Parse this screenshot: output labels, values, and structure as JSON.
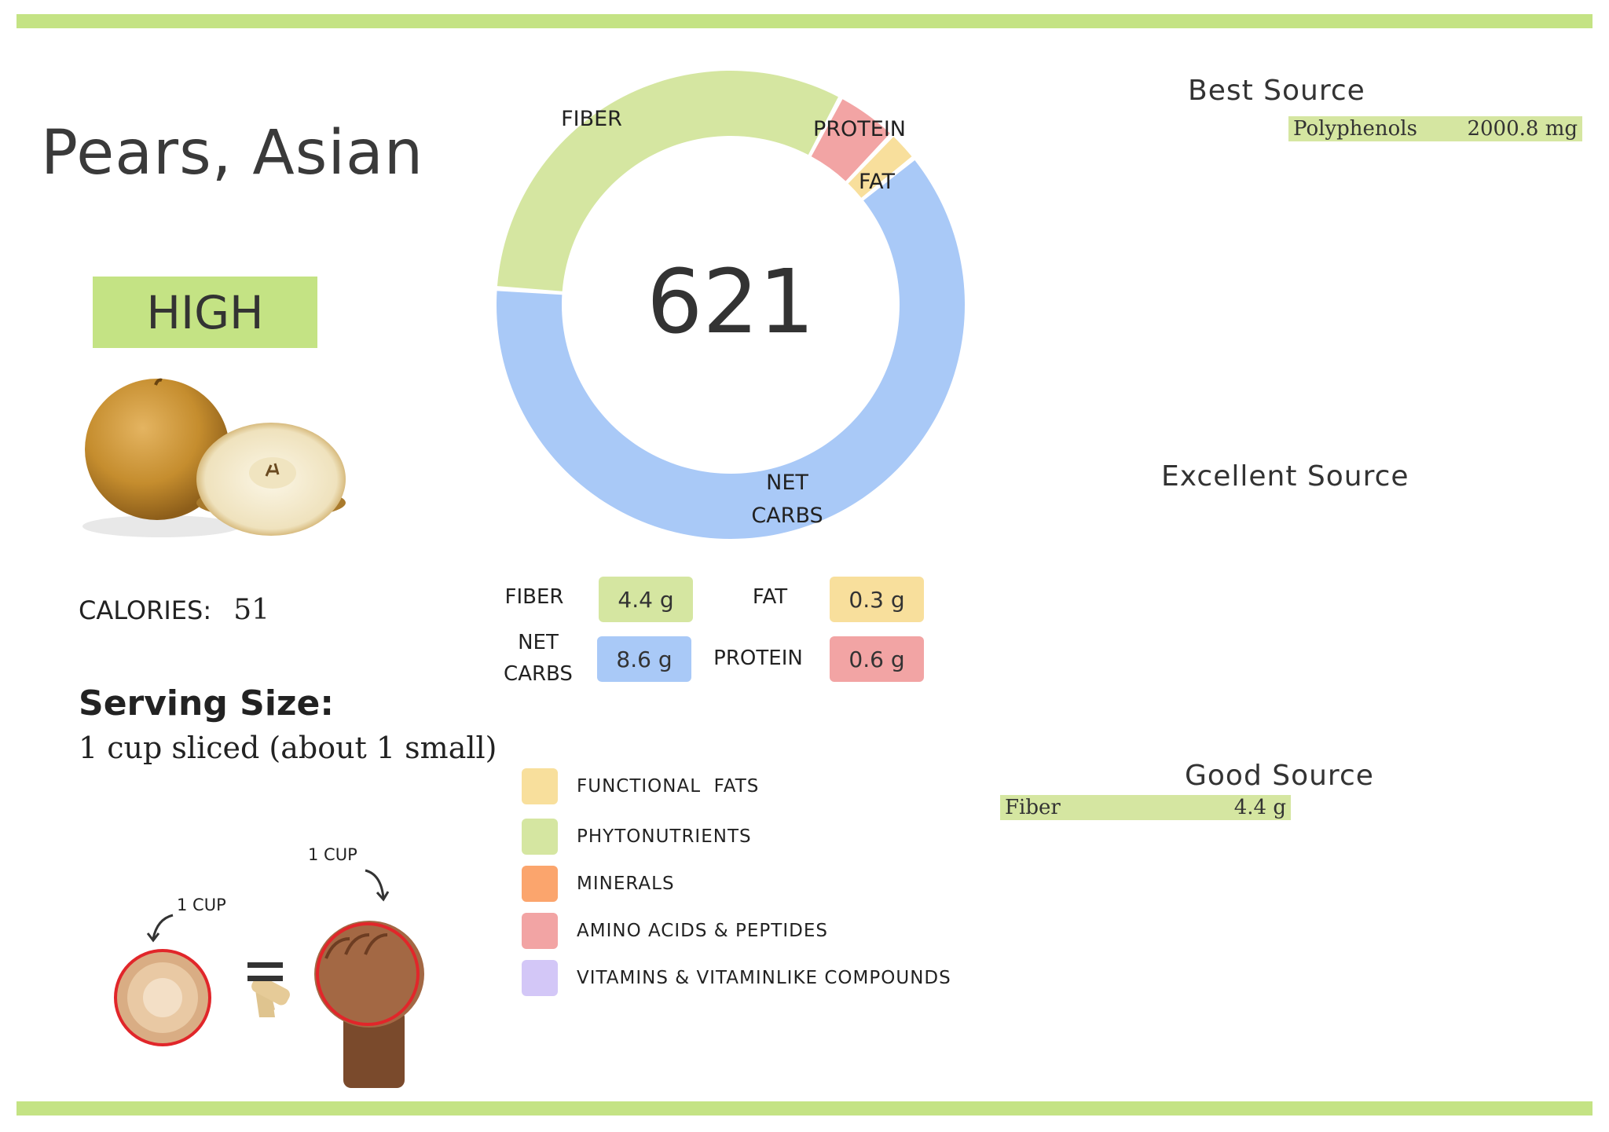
{
  "colors": {
    "accent_green": "#c4e384",
    "fiber": "#d5e6a1",
    "protein": "#f2a4a4",
    "fat": "#f8df9c",
    "net_carbs": "#a9c9f7",
    "minerals": "#fba56d",
    "vitamins": "#d3c7f7",
    "best_source_bar": "#d5e6a1"
  },
  "food": {
    "name": "Pears, Asian",
    "rating": "HIGH",
    "image_icon": "asian-pear-photo",
    "calories_label": "CALORIES:",
    "calories_value": "51"
  },
  "serving": {
    "title": "Serving Size:",
    "value": "1 cup sliced (about 1 small)",
    "cup_label": "1 CUP",
    "fist_label": "1 CUP",
    "equals": "="
  },
  "chart_data": {
    "type": "pie",
    "center_value": "621",
    "slices": [
      {
        "name": "FIBER",
        "value": 4.4,
        "color": "#d5e6a1"
      },
      {
        "name": "PROTEIN",
        "value": 0.6,
        "color": "#f2a4a4"
      },
      {
        "name": "FAT",
        "value": 0.3,
        "color": "#f8df9c"
      },
      {
        "name": "NET CARBS",
        "value": 8.6,
        "color": "#a9c9f7"
      }
    ],
    "labels": {
      "fiber": "FIBER",
      "protein": "PROTEIN",
      "fat": "FAT",
      "net_carbs_1": "NET",
      "net_carbs_2": "CARBS"
    }
  },
  "macros": {
    "fiber_label": "FIBER",
    "fiber_value": "4.4 g",
    "fat_label": "FAT",
    "fat_value": "0.3 g",
    "net_carbs_label_1": "NET",
    "net_carbs_label_2": "CARBS",
    "net_carbs_value": "8.6 g",
    "protein_label": "PROTEIN",
    "protein_value": "0.6 g"
  },
  "legend": [
    {
      "label": "FUNCTIONAL  FATS",
      "color": "#f8df9c"
    },
    {
      "label": "PHYTONUTRIENTS",
      "color": "#d5e6a1"
    },
    {
      "label": "MINERALS",
      "color": "#fba56d"
    },
    {
      "label": "AMINO ACIDS & PEPTIDES",
      "color": "#f2a4a4"
    },
    {
      "label": "VITAMINS & VITAMINLIKE COMPOUNDS",
      "color": "#d3c7f7"
    }
  ],
  "sources": {
    "best_title": "Best Source",
    "best_items": [
      {
        "name": "Polyphenols",
        "value": "2000.8 mg",
        "fill": 1.0
      }
    ],
    "excellent_title": "Excellent Source",
    "good_title": "Good Source",
    "good_items": [
      {
        "name": "Fiber",
        "value": "4.4 g",
        "fill": 1.0
      }
    ]
  }
}
